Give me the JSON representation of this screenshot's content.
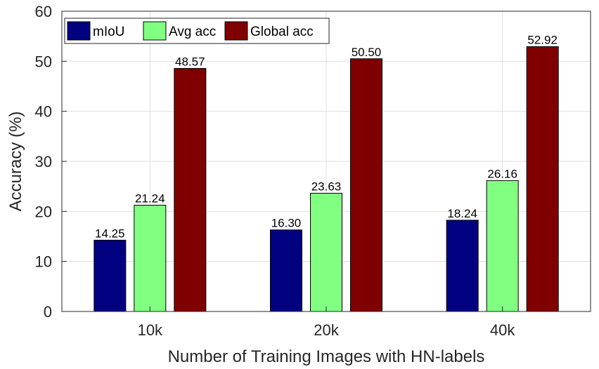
{
  "chart_data": {
    "type": "bar",
    "title": "",
    "xlabel": "Number of Training Images with HN-labels",
    "ylabel": "Accuracy (%)",
    "categories": [
      "10k",
      "20k",
      "40k"
    ],
    "ylim": [
      0,
      60
    ],
    "yticks": [
      "0",
      "10",
      "20",
      "30",
      "40",
      "50",
      "60"
    ],
    "grid": true,
    "legend_position": "top-left",
    "series": [
      {
        "name": "mIoU",
        "color": "#000080",
        "values": [
          14.25,
          16.3,
          18.24
        ],
        "labels": [
          "14.25",
          "16.30",
          "18.24"
        ]
      },
      {
        "name": "Avg acc",
        "color": "#80FF80",
        "values": [
          21.24,
          23.63,
          26.16
        ],
        "labels": [
          "21.24",
          "23.63",
          "26.16"
        ]
      },
      {
        "name": "Global acc",
        "color": "#800000",
        "values": [
          48.57,
          50.5,
          52.92
        ],
        "labels": [
          "48.57",
          "50.50",
          "52.92"
        ]
      }
    ]
  }
}
